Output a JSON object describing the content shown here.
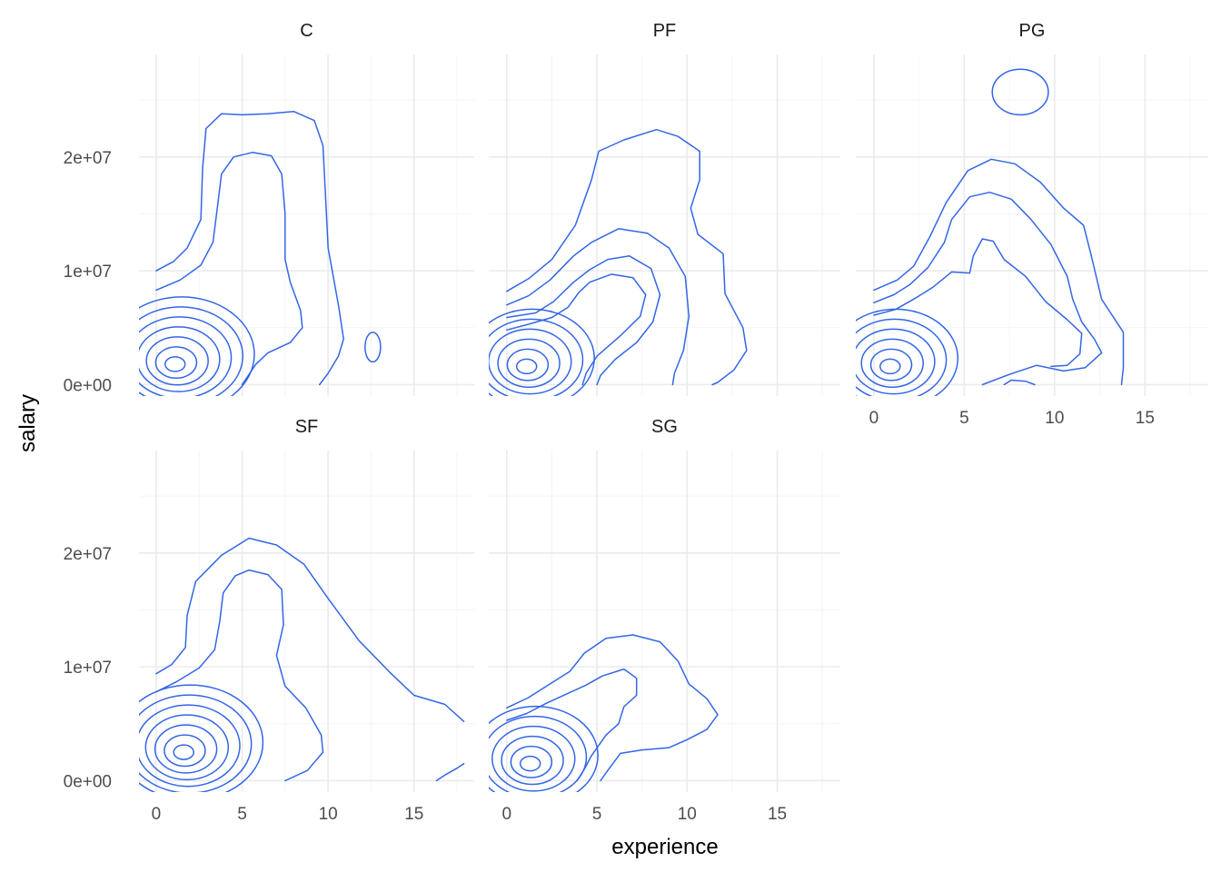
{
  "chart_data": {
    "type": "density_contour",
    "facet_by": "position",
    "xlabel": "experience",
    "ylabel": "salary",
    "xlim": [
      -1,
      18.5
    ],
    "ylim": [
      -1000000,
      29000000
    ],
    "x_ticks": [
      0,
      5,
      10,
      15
    ],
    "x_tick_labels": [
      "0",
      "5",
      "10",
      "15"
    ],
    "y_ticks": [
      0,
      10000000,
      20000000
    ],
    "y_tick_labels": [
      "0e+00",
      "1e+07",
      "2e+07"
    ],
    "line_color": "#3366e6",
    "panels": [
      {
        "label": "C",
        "contours": [
          [
            [
              0,
              10000000
            ],
            [
              1.0,
              10800000
            ],
            [
              1.8,
              12000000
            ],
            [
              2.6,
              14500000
            ],
            [
              2.7,
              19000000
            ],
            [
              2.9,
              22500000
            ],
            [
              3.8,
              23800000
            ],
            [
              5,
              23700000
            ],
            [
              6.5,
              23800000
            ],
            [
              8,
              24000000
            ],
            [
              9.2,
              23200000
            ],
            [
              9.7,
              21000000
            ],
            [
              9.8,
              18000000
            ],
            [
              10.0,
              12000000
            ],
            [
              10.6,
              7000000
            ],
            [
              10.9,
              4000000
            ],
            [
              10.6,
              2500000
            ],
            [
              10.0,
              1000000
            ],
            [
              9.5,
              0
            ]
          ],
          [
            [
              0,
              8300000
            ],
            [
              1.4,
              9200000
            ],
            [
              2.6,
              10500000
            ],
            [
              3.3,
              12500000
            ],
            [
              3.6,
              16000000
            ],
            [
              3.8,
              18500000
            ],
            [
              4.5,
              20000000
            ],
            [
              5.6,
              20400000
            ],
            [
              6.7,
              20100000
            ],
            [
              7.3,
              18500000
            ],
            [
              7.5,
              15000000
            ],
            [
              7.5,
              11000000
            ],
            [
              7.8,
              9000000
            ],
            [
              8.4,
              6500000
            ],
            [
              8.5,
              5000000
            ],
            [
              7.8,
              3700000
            ],
            [
              6.5,
              2800000
            ],
            [
              5.8,
              1800000
            ],
            [
              5.0,
              0
            ]
          ]
        ],
        "hotspot": [
          1.1,
          1800000
        ],
        "rings": 7,
        "islands": [
          [
            12.6,
            3300000,
            0.45,
            1300000
          ]
        ]
      },
      {
        "label": "PF",
        "contours": [
          [
            [
              0,
              8200000
            ],
            [
              1.2,
              9300000
            ],
            [
              2.5,
              11000000
            ],
            [
              3.8,
              14000000
            ],
            [
              4.7,
              18000000
            ],
            [
              5.1,
              20500000
            ],
            [
              6.5,
              21500000
            ],
            [
              8.3,
              22400000
            ],
            [
              9.5,
              21800000
            ],
            [
              10.7,
              20500000
            ],
            [
              10.7,
              18000000
            ],
            [
              10.2,
              15500000
            ],
            [
              10.6,
              13200000
            ],
            [
              12.0,
              11500000
            ],
            [
              12.1,
              8000000
            ],
            [
              13.1,
              5000000
            ],
            [
              13.3,
              3000000
            ],
            [
              12.6,
              1300000
            ],
            [
              11.7,
              200000
            ],
            [
              11.4,
              0
            ]
          ],
          [
            [
              0,
              7000000
            ],
            [
              1.2,
              7800000
            ],
            [
              2.4,
              9200000
            ],
            [
              3.7,
              11300000
            ],
            [
              4.7,
              12500000
            ],
            [
              6.2,
              13700000
            ],
            [
              7.8,
              13300000
            ],
            [
              9.0,
              12000000
            ],
            [
              9.9,
              9500000
            ],
            [
              10.1,
              6000000
            ],
            [
              9.8,
              3000000
            ],
            [
              9.3,
              1000000
            ],
            [
              9.2,
              0
            ]
          ],
          [
            [
              0,
              5900000
            ],
            [
              1.6,
              6300000
            ],
            [
              2.6,
              7300000
            ],
            [
              3.7,
              9000000
            ],
            [
              4.6,
              10100000
            ],
            [
              5.6,
              11000000
            ],
            [
              6.8,
              11300000
            ],
            [
              8.0,
              10200000
            ],
            [
              8.5,
              7900000
            ],
            [
              8.1,
              5500000
            ],
            [
              7.2,
              3700000
            ],
            [
              6.0,
              2200000
            ],
            [
              5.2,
              800000
            ],
            [
              5.0,
              0
            ]
          ],
          [
            [
              0,
              4800000
            ],
            [
              1.2,
              5300000
            ],
            [
              2.5,
              5900000
            ],
            [
              3.4,
              6800000
            ],
            [
              4.0,
              8100000
            ],
            [
              4.6,
              9000000
            ],
            [
              5.8,
              9700000
            ],
            [
              7.0,
              9400000
            ],
            [
              7.7,
              7900000
            ],
            [
              7.4,
              6000000
            ],
            [
              6.3,
              4300000
            ],
            [
              5.0,
              2500000
            ],
            [
              4.4,
              1000000
            ],
            [
              4.2,
              0
            ]
          ]
        ],
        "hotspot": [
          1.1,
          1600000
        ],
        "rings": 6,
        "islands": []
      },
      {
        "label": "PG",
        "contours": [
          [
            [
              0,
              8300000
            ],
            [
              1.3,
              9200000
            ],
            [
              2.2,
              10400000
            ],
            [
              3.1,
              13000000
            ],
            [
              4.0,
              16000000
            ],
            [
              5.2,
              18800000
            ],
            [
              6.5,
              19800000
            ],
            [
              7.8,
              19400000
            ],
            [
              9.2,
              17800000
            ],
            [
              10.5,
              15500000
            ],
            [
              11.6,
              14000000
            ],
            [
              12.0,
              11500000
            ],
            [
              12.6,
              7500000
            ],
            [
              13.8,
              4600000
            ],
            [
              13.8,
              1500000
            ],
            [
              13.7,
              0
            ]
          ],
          [
            [
              0,
              7200000
            ],
            [
              1.1,
              7900000
            ],
            [
              2.0,
              8800000
            ],
            [
              3.0,
              10300000
            ],
            [
              3.9,
              12500000
            ],
            [
              4.3,
              14500000
            ],
            [
              5.3,
              16500000
            ],
            [
              6.4,
              16900000
            ],
            [
              7.6,
              16300000
            ],
            [
              8.7,
              14500000
            ],
            [
              9.8,
              12300000
            ],
            [
              10.7,
              9500000
            ],
            [
              11.0,
              7500000
            ],
            [
              11.5,
              5500000
            ],
            [
              12.2,
              4000000
            ],
            [
              12.6,
              2800000
            ],
            [
              11.7,
              1500000
            ],
            [
              10.5,
              1200000
            ],
            [
              9.0,
              1700000
            ],
            [
              7.5,
              900000
            ],
            [
              6.0,
              0
            ]
          ],
          [
            [
              0,
              6100000
            ],
            [
              1.2,
              6600000
            ],
            [
              2.3,
              7600000
            ],
            [
              3.3,
              8600000
            ],
            [
              4.3,
              9900000
            ],
            [
              5.3,
              9800000
            ],
            [
              5.5,
              11300000
            ],
            [
              6.0,
              12800000
            ],
            [
              6.6,
              12600000
            ],
            [
              7.2,
              11000000
            ],
            [
              8.4,
              9500000
            ],
            [
              9.5,
              7300000
            ],
            [
              10.7,
              5700000
            ],
            [
              11.5,
              4500000
            ],
            [
              11.4,
              2700000
            ],
            [
              10.7,
              1700000
            ],
            [
              9.8,
              1600000
            ]
          ],
          [
            [
              7.2,
              0
            ],
            [
              7.6,
              400000
            ],
            [
              8.4,
              300000
            ],
            [
              8.9,
              0
            ]
          ]
        ],
        "hotspot": [
          0.9,
          1600000
        ],
        "rings": 6,
        "islands": [
          [
            8.1,
            25700000,
            1.55,
            2000000
          ]
        ]
      },
      {
        "label": "SF",
        "contours": [
          [
            [
              0,
              9400000
            ],
            [
              0.9,
              10200000
            ],
            [
              1.7,
              11700000
            ],
            [
              1.8,
              14500000
            ],
            [
              2.3,
              17500000
            ],
            [
              3.8,
              19800000
            ],
            [
              5.4,
              21300000
            ],
            [
              7.0,
              20700000
            ],
            [
              8.6,
              19000000
            ],
            [
              10.0,
              16000000
            ],
            [
              11.8,
              12300000
            ],
            [
              13.6,
              9500000
            ],
            [
              15.0,
              7500000
            ],
            [
              16.8,
              6700000
            ],
            [
              17.9,
              5200000
            ]
          ],
          [
            [
              0,
              7800000
            ],
            [
              1.2,
              8700000
            ],
            [
              2.5,
              9900000
            ],
            [
              3.4,
              11500000
            ],
            [
              3.7,
              14000000
            ],
            [
              3.9,
              16500000
            ],
            [
              4.6,
              18000000
            ],
            [
              5.4,
              18500000
            ],
            [
              6.5,
              18100000
            ],
            [
              7.3,
              16800000
            ],
            [
              7.4,
              13700000
            ],
            [
              7.0,
              11000000
            ],
            [
              7.5,
              8300000
            ],
            [
              8.7,
              6400000
            ],
            [
              9.6,
              4000000
            ],
            [
              9.7,
              2500000
            ],
            [
              8.8,
              900000
            ],
            [
              7.5,
              0
            ]
          ],
          [
            [
              17.9,
              1500000
            ],
            [
              17.5,
              1100000
            ],
            [
              16.8,
              500000
            ],
            [
              16.3,
              0
            ]
          ]
        ],
        "hotspot": [
          1.6,
          2500000
        ],
        "rings": 7,
        "islands": []
      },
      {
        "label": "SG",
        "contours": [
          [
            [
              0,
              6400000
            ],
            [
              1.2,
              7300000
            ],
            [
              2.4,
              8500000
            ],
            [
              3.5,
              9600000
            ],
            [
              4.3,
              11200000
            ],
            [
              5.5,
              12500000
            ],
            [
              7.0,
              12800000
            ],
            [
              8.5,
              12200000
            ],
            [
              9.5,
              10500000
            ],
            [
              10.1,
              8500000
            ],
            [
              11.1,
              7200000
            ],
            [
              11.7,
              5800000
            ],
            [
              11.1,
              4500000
            ],
            [
              10.0,
              3600000
            ],
            [
              9.0,
              2900000
            ],
            [
              7.5,
              2700000
            ],
            [
              6.3,
              2400000
            ],
            [
              5.6,
              900000
            ],
            [
              5.2,
              0
            ]
          ],
          [
            [
              0,
              5300000
            ],
            [
              1.1,
              5900000
            ],
            [
              2.2,
              6800000
            ],
            [
              3.3,
              7600000
            ],
            [
              4.4,
              8400000
            ],
            [
              5.3,
              9200000
            ],
            [
              6.5,
              9800000
            ],
            [
              7.2,
              9000000
            ],
            [
              7.2,
              7500000
            ],
            [
              6.5,
              6500000
            ],
            [
              6.2,
              5000000
            ],
            [
              5.5,
              4000000
            ],
            [
              4.7,
              2200000
            ],
            [
              4.3,
              1000000
            ],
            [
              3.9,
              0
            ]
          ]
        ],
        "hotspot": [
          1.3,
          1500000
        ],
        "rings": 6,
        "islands": []
      }
    ]
  }
}
